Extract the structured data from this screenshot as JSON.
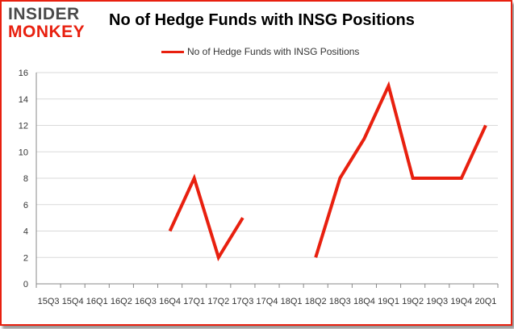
{
  "logo": {
    "line1": "INSIDER",
    "line2": "MONKEY"
  },
  "colors": {
    "accent": "#e8200f",
    "grid": "#d9d9d9",
    "axis": "#888888"
  },
  "chart_data": {
    "type": "line",
    "title": "No of Hedge Funds with INSG Positions",
    "legend": "top-center",
    "grid": true,
    "categories": [
      "15Q3",
      "15Q4",
      "16Q1",
      "16Q2",
      "16Q3",
      "16Q4",
      "17Q1",
      "17Q2",
      "17Q3",
      "17Q4",
      "18Q1",
      "18Q2",
      "18Q3",
      "18Q4",
      "19Q1",
      "19Q2",
      "19Q3",
      "19Q4",
      "20Q1"
    ],
    "series": [
      {
        "name": "No of Hedge Funds with INSG  Positions",
        "values": [
          null,
          null,
          null,
          null,
          null,
          4,
          8,
          2,
          5,
          null,
          null,
          2,
          8,
          11,
          15,
          8,
          8,
          8,
          12
        ]
      }
    ],
    "ylim": [
      0,
      16
    ],
    "yticks": [
      0,
      2,
      4,
      6,
      8,
      10,
      12,
      14,
      16
    ]
  }
}
